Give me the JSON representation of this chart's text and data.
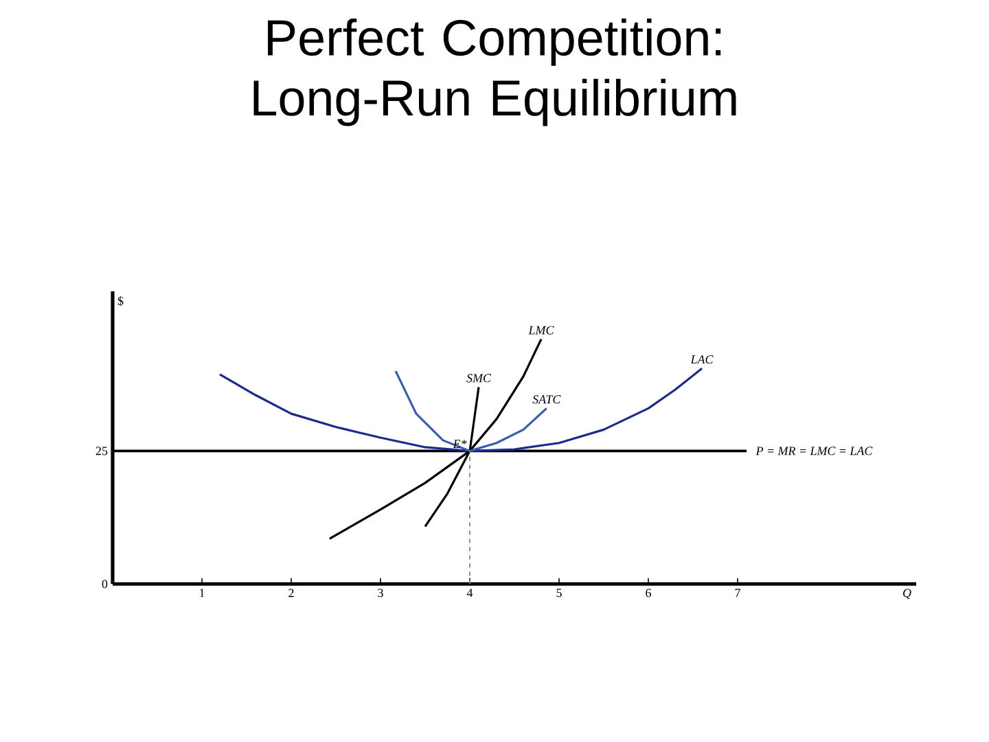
{
  "chart_data": {
    "type": "line",
    "title": "Perfect Competition: Long-Run Equilibrium",
    "xlabel": "Q",
    "ylabel": "$",
    "xlim": [
      0,
      9
    ],
    "ylim": [
      0,
      55
    ],
    "xticks": [
      1,
      2,
      3,
      4,
      5,
      6,
      7
    ],
    "yticks": [
      0,
      25
    ],
    "legend": false,
    "grid": false,
    "marker": "none",
    "line_style": "solid",
    "series": [
      {
        "name": "LAC",
        "color": "#1c2a8c",
        "x": [
          1.2,
          1.6,
          2,
          2.5,
          3,
          3.5,
          4,
          4.5,
          5,
          5.5,
          6,
          6.3,
          6.6
        ],
        "values": [
          39.4,
          35.5,
          32,
          29.5,
          27.5,
          25.7,
          25,
          25.3,
          26.5,
          29,
          33,
          36.5,
          40.5
        ]
      },
      {
        "name": "LMC",
        "color": "#000000",
        "x": [
          2.43,
          3,
          3.5,
          4,
          4.3,
          4.6,
          4.8
        ],
        "values": [
          8.5,
          14,
          19,
          25,
          31,
          39,
          46
        ]
      },
      {
        "name": "SMC",
        "color": "#000000",
        "x": [
          3.5,
          3.75,
          4,
          4.05,
          4.1
        ],
        "values": [
          10.8,
          17,
          25,
          31,
          37
        ]
      },
      {
        "name": "SATC",
        "color": "#3a5bb0",
        "x": [
          3.17,
          3.4,
          3.7,
          4,
          4.3,
          4.6,
          4.86
        ],
        "values": [
          40,
          32,
          27,
          25,
          26.5,
          29,
          33
        ]
      },
      {
        "color": "#808080",
        "line_style": "dashed",
        "x": [
          4,
          4
        ],
        "values": [
          0,
          25
        ]
      }
    ],
    "ref_lines": [
      {
        "axis": "y",
        "value": 25,
        "label": "P = MR = LMC = LAC",
        "color": "#000000"
      }
    ],
    "annotations": [
      {
        "text": "E*",
        "x": 4,
        "y": 25
      }
    ]
  }
}
